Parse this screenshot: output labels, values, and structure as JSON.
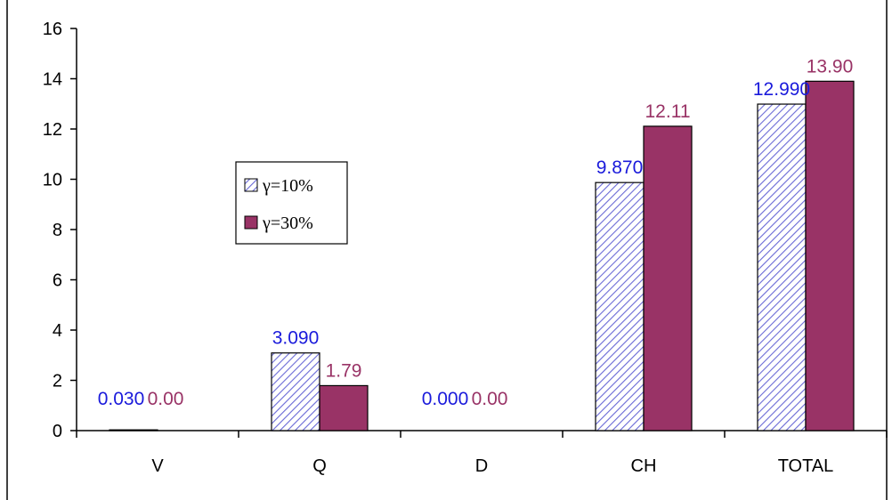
{
  "colors": {
    "series1_label": "#1a1adb",
    "series1_hatch": "#6a6ad6",
    "series1_bg": "#ffffff",
    "series2_fill": "#993366",
    "series2_label": "#993366",
    "axis": "#000000"
  },
  "chart_data": {
    "type": "bar",
    "categories": [
      "V",
      "Q",
      "D",
      "CH",
      "TOTAL"
    ],
    "series": [
      {
        "name": "γ=10%",
        "values": [
          0.03,
          3.09,
          0.0,
          9.87,
          12.99
        ],
        "labels": [
          "0.030",
          "3.090",
          "0.000",
          "9.870",
          "12.990"
        ]
      },
      {
        "name": "γ=30%",
        "values": [
          0.0,
          1.79,
          0.0,
          12.11,
          13.9
        ],
        "labels": [
          "0.00",
          "1.79",
          "0.00",
          "12.11",
          "13.90"
        ]
      }
    ],
    "ylim": [
      0,
      16
    ],
    "yticks": [
      "0",
      "2",
      "4",
      "6",
      "8",
      "10",
      "12",
      "14",
      "16"
    ],
    "grid": false,
    "legend": "left-middle"
  }
}
